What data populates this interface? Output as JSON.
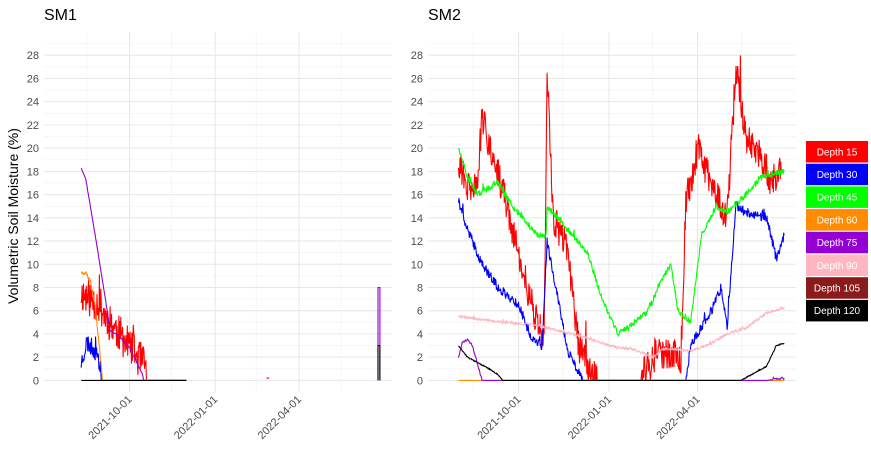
{
  "ylabel": "Volumetric Soil Moisture (%)",
  "y_ticks": [
    0,
    2,
    4,
    6,
    8,
    10,
    12,
    14,
    16,
    18,
    20,
    22,
    24,
    26,
    28
  ],
  "x_ticks": [
    "2021-10-01",
    "2022-01-01",
    "2022-04-01"
  ],
  "legend": [
    {
      "label": "Depth 15",
      "color": "#ff0000"
    },
    {
      "label": "Depth 30",
      "color": "#0000ff"
    },
    {
      "label": "Depth 45",
      "color": "#00ff00"
    },
    {
      "label": "Depth 60",
      "color": "#ff8c00"
    },
    {
      "label": "Depth 75",
      "color": "#9400d3"
    },
    {
      "label": "Depth 90",
      "color": "#ffb6c1"
    },
    {
      "label": "Depth 105",
      "color": "#8b1a1a"
    },
    {
      "label": "Depth 120",
      "color": "#000000"
    }
  ],
  "chart_data": [
    {
      "type": "line",
      "title": "SM1",
      "ylabel": "Volumetric Soil Moisture (%)",
      "xlim": [
        "2021-07-01",
        "2022-07-10"
      ],
      "ylim": [
        -1,
        30
      ],
      "x_tick_labels": [
        "2021-10-01",
        "2022-01-01",
        "2022-04-01"
      ],
      "grid": true,
      "series": [
        {
          "name": "Depth 15",
          "color": "#ff0000",
          "noise": 1.6,
          "seed": 11,
          "x": [
            "2021-08-10",
            "2021-08-20",
            "2021-08-30",
            "2021-09-05",
            "2021-09-15",
            "2021-09-25",
            "2021-10-05",
            "2021-10-15",
            "2021-10-18",
            "2021-10-20",
            "2021-11-15",
            "2021-12-01"
          ],
          "y": [
            7.5,
            7,
            6.5,
            5.5,
            4.5,
            3.5,
            2.5,
            1.5,
            1.2,
            0,
            0,
            0
          ]
        },
        {
          "name": "Depth 30",
          "color": "#0000ff",
          "noise": 0.8,
          "seed": 23,
          "x": [
            "2021-08-10",
            "2021-08-16",
            "2021-08-22",
            "2021-08-28",
            "2021-09-01",
            "2021-12-01"
          ],
          "y": [
            1.5,
            3.3,
            2.8,
            2.2,
            0,
            0
          ]
        },
        {
          "name": "Depth 60",
          "color": "#ff8c00",
          "noise": 0.15,
          "seed": 5,
          "x": [
            "2021-08-10",
            "2021-08-15",
            "2021-08-20",
            "2021-08-25",
            "2021-09-02",
            "2021-12-01"
          ],
          "y": [
            9.3,
            9.2,
            8.5,
            6.5,
            0,
            0
          ]
        },
        {
          "name": "Depth 75",
          "color": "#9400d3",
          "noise": 0.05,
          "seed": 7,
          "x": [
            "2021-08-10",
            "2021-08-15",
            "2021-08-25",
            "2021-09-05",
            "2021-09-10",
            "2021-09-20",
            "2021-10-01",
            "2021-10-10",
            "2021-10-15",
            "2021-10-16",
            "2021-12-01"
          ],
          "y": [
            18.3,
            17.3,
            12.5,
            7,
            4.3,
            3.8,
            2.8,
            1.3,
            0.5,
            0,
            0
          ]
        },
        {
          "name": "Depth 120",
          "color": "#000000",
          "noise": 0,
          "seed": 1,
          "x": [
            "2021-08-10",
            "2021-12-01"
          ],
          "y": [
            0,
            0
          ]
        },
        {
          "name": "Depth 15",
          "color": "#ff0000",
          "noise": 0,
          "seed": 2,
          "x": [
            "2022-02-25",
            "2022-02-28"
          ],
          "y": [
            0.2,
            0.2
          ]
        },
        {
          "name": "Depth 75",
          "color": "#9400d3",
          "noise": 0,
          "seed": 3,
          "x": [
            "2022-06-25",
            "2022-06-25",
            "2022-06-27",
            "2022-06-27"
          ],
          "y": [
            0,
            8,
            8,
            0
          ]
        },
        {
          "name": "Depth 120",
          "color": "#000000",
          "noise": 0,
          "seed": 4,
          "x": [
            "2022-06-25",
            "2022-06-25",
            "2022-06-27",
            "2022-06-27"
          ],
          "y": [
            0,
            3,
            3,
            0
          ]
        }
      ]
    },
    {
      "type": "line",
      "title": "SM2",
      "xlim": [
        "2021-07-01",
        "2022-07-10"
      ],
      "ylim": [
        -1,
        30
      ],
      "x_tick_labels": [
        "2021-10-01",
        "2022-01-01",
        "2022-04-01"
      ],
      "grid": true,
      "series": [
        {
          "name": "Depth 15",
          "color": "#ff0000",
          "noise": 1.4,
          "seed": 31,
          "x": [
            "2021-08-01",
            "2021-08-10",
            "2021-08-20",
            "2021-08-25",
            "2021-09-10",
            "2021-09-25",
            "2021-10-10",
            "2021-10-20",
            "2021-10-27",
            "2021-10-30",
            "2021-11-05",
            "2021-11-20",
            "2021-12-01",
            "2021-12-20",
            "2022-01-10",
            "2022-02-01",
            "2022-02-20",
            "2022-03-15",
            "2022-03-20",
            "2022-04-01",
            "2022-04-20",
            "2022-05-01",
            "2022-05-10",
            "2022-05-20",
            "2022-06-01",
            "2022-06-15",
            "2022-06-25"
          ],
          "y": [
            19,
            16.5,
            17,
            22.5,
            18,
            13,
            8,
            5,
            3.5,
            27,
            14,
            11,
            3,
            0,
            0,
            0,
            2.5,
            2,
            15,
            20,
            16,
            14,
            27,
            21,
            20,
            17,
            18
          ]
        },
        {
          "name": "Depth 30",
          "color": "#0000ff",
          "noise": 0.4,
          "seed": 41,
          "x": [
            "2021-08-01",
            "2021-08-10",
            "2021-08-25",
            "2021-09-10",
            "2021-10-01",
            "2021-10-15",
            "2021-10-25",
            "2021-10-30",
            "2021-11-20",
            "2021-12-05",
            "2021-12-15",
            "2022-03-20",
            "2022-03-25",
            "2022-04-15",
            "2022-04-25",
            "2022-05-01",
            "2022-05-10",
            "2022-05-20",
            "2022-06-10",
            "2022-06-20",
            "2022-06-28"
          ],
          "y": [
            15.5,
            13,
            10,
            8,
            6.5,
            3.5,
            3,
            12,
            2.5,
            0,
            0,
            0,
            3,
            6,
            8,
            4.5,
            15,
            14.5,
            14,
            10.5,
            12.5
          ]
        },
        {
          "name": "Depth 45",
          "color": "#00ff00",
          "noise": 0.25,
          "seed": 51,
          "x": [
            "2021-08-01",
            "2021-08-10",
            "2021-08-20",
            "2021-09-10",
            "2021-09-25",
            "2021-10-20",
            "2021-10-29",
            "2021-10-30",
            "2021-11-25",
            "2021-12-10",
            "2021-12-25",
            "2022-01-10",
            "2022-01-20",
            "2022-02-10",
            "2022-02-20",
            "2022-03-05",
            "2022-03-12",
            "2022-03-25",
            "2022-04-05",
            "2022-04-20",
            "2022-05-01",
            "2022-05-20",
            "2022-06-05",
            "2022-06-28"
          ],
          "y": [
            20,
            17.5,
            16,
            17,
            15,
            12.5,
            12.5,
            15,
            12.5,
            11,
            7,
            4,
            4.5,
            6,
            8,
            10,
            6,
            5,
            12.5,
            15,
            14.5,
            16,
            17.5,
            18
          ]
        },
        {
          "name": "Depth 60",
          "color": "#ff8c00",
          "noise": 0,
          "seed": 2,
          "x": [
            "2021-08-01",
            "2022-06-28"
          ],
          "y": [
            0,
            0
          ]
        },
        {
          "name": "Depth 75",
          "color": "#9400d3",
          "noise": 0.1,
          "seed": 61,
          "x": [
            "2021-08-01",
            "2021-08-05",
            "2021-08-10",
            "2021-08-15",
            "2021-08-20",
            "2021-08-25",
            "2022-06-10",
            "2022-06-28"
          ],
          "y": [
            2,
            3.3,
            3.5,
            3,
            1.5,
            0,
            0,
            0.2
          ]
        },
        {
          "name": "Depth 90",
          "color": "#ffb6c1",
          "noise": 0.12,
          "seed": 71,
          "x": [
            "2021-08-01",
            "2021-08-20",
            "2021-09-15",
            "2021-10-15",
            "2021-11-15",
            "2021-12-15",
            "2022-01-10",
            "2022-01-25",
            "2022-02-15",
            "2022-02-25",
            "2022-03-10",
            "2022-03-25",
            "2022-04-15",
            "2022-05-01",
            "2022-05-20",
            "2022-06-10",
            "2022-06-28"
          ],
          "y": [
            5.5,
            5.3,
            5,
            4.8,
            4.2,
            3.5,
            2.8,
            2.7,
            2,
            2.7,
            2.7,
            2.5,
            3.2,
            4,
            4.5,
            5.8,
            6.3
          ]
        },
        {
          "name": "Depth 120",
          "color": "#000000",
          "noise": 0.05,
          "seed": 81,
          "x": [
            "2021-08-01",
            "2021-08-10",
            "2021-09-01",
            "2021-09-10",
            "2021-09-15",
            "2022-05-15",
            "2022-06-10",
            "2022-06-20",
            "2022-06-28"
          ],
          "y": [
            3,
            2,
            1,
            0.5,
            0,
            0,
            1.2,
            3,
            3.2
          ]
        }
      ]
    }
  ]
}
